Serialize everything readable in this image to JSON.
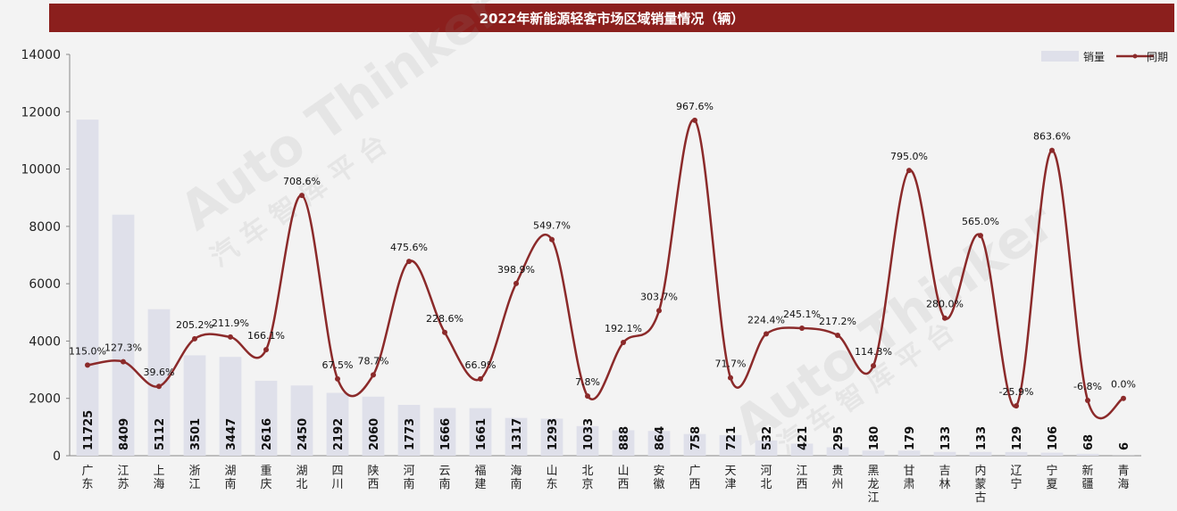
{
  "watermark": {
    "text": "Auto Thinker",
    "subtext": "汽 车 智 库 平 台"
  },
  "chart_data": {
    "type": "bar",
    "title": "2022年新能源轻客市场区域销量情况（辆）",
    "categories": [
      "广东",
      "江苏",
      "上海",
      "浙江",
      "湖南",
      "重庆",
      "湖北",
      "四川",
      "陕西",
      "河南",
      "云南",
      "福建",
      "海南",
      "山东",
      "北京",
      "山西",
      "安徽",
      "广西",
      "天津",
      "河北",
      "江西",
      "贵州",
      "黑龙江",
      "甘肃",
      "吉林",
      "内蒙古",
      "辽宁",
      "宁夏",
      "新疆",
      "青海"
    ],
    "ylim": [
      0,
      14000
    ],
    "yticks": [
      "0",
      "2000",
      "4000",
      "6000",
      "8000",
      "10000",
      "12000",
      "14000"
    ],
    "legend_position": "top-right",
    "grid": false,
    "series": [
      {
        "name": "销量",
        "type": "bar",
        "color": "#dfe0ea",
        "values": [
          11725,
          8409,
          5112,
          3501,
          3447,
          2616,
          2450,
          2192,
          2060,
          1773,
          1666,
          1661,
          1317,
          1293,
          1033,
          888,
          864,
          758,
          721,
          532,
          421,
          295,
          180,
          179,
          133,
          133,
          129,
          106,
          68,
          6
        ]
      },
      {
        "name": "同期",
        "type": "line",
        "color": "#8b2a2a",
        "labels": [
          "115.0%",
          "127.3%",
          "39.6%",
          "205.2%",
          "211.9%",
          "166.1%",
          "708.6%",
          "67.5%",
          "78.7%",
          "475.6%",
          "228.6%",
          "66.9%",
          "398.9%",
          "549.7%",
          "7.8%",
          "192.1%",
          "303.7%",
          "967.6%",
          "71.7%",
          "224.4%",
          "245.1%",
          "217.2%",
          "114.3%",
          "795.0%",
          "280.0%",
          "565.0%",
          "-25.9%",
          "863.6%",
          "-6.8%",
          "0.0%"
        ],
        "values": [
          3160,
          3280,
          2420,
          4080,
          4140,
          3700,
          9080,
          2680,
          2820,
          6780,
          4300,
          2680,
          6010,
          7540,
          2080,
          3950,
          5060,
          11700,
          2720,
          4250,
          4450,
          4200,
          3140,
          9950,
          4800,
          7680,
          1740,
          10650,
          1930,
          2000
        ]
      }
    ]
  }
}
